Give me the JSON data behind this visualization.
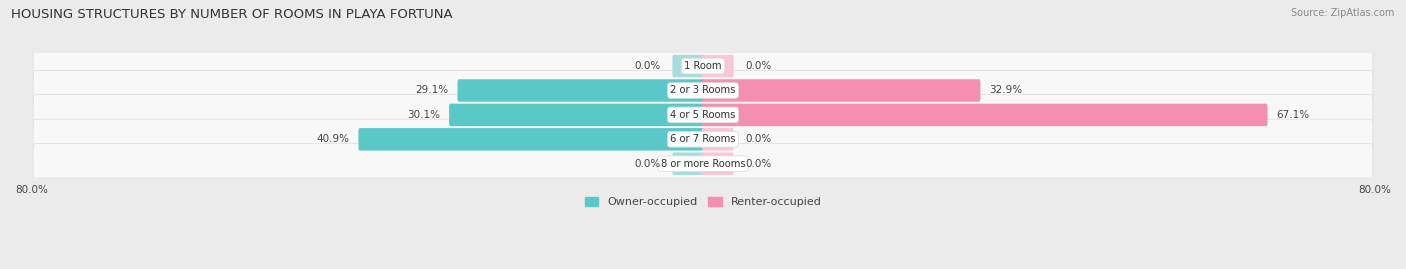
{
  "title": "HOUSING STRUCTURES BY NUMBER OF ROOMS IN PLAYA FORTUNA",
  "source": "Source: ZipAtlas.com",
  "categories": [
    "1 Room",
    "2 or 3 Rooms",
    "4 or 5 Rooms",
    "6 or 7 Rooms",
    "8 or more Rooms"
  ],
  "owner_values": [
    0.0,
    29.1,
    30.1,
    40.9,
    0.0
  ],
  "renter_values": [
    0.0,
    32.9,
    67.1,
    0.0,
    0.0
  ],
  "owner_color": "#5BC8C8",
  "renter_color": "#F48FB1",
  "owner_light_color": "#A8DCDC",
  "renter_light_color": "#F9C6D5",
  "row_bg_color": "#F2F2F2",
  "outer_bg_color": "#E8E8E8",
  "fig_bg_color": "#EBEBEB",
  "axis_min": -80.0,
  "axis_max": 80.0,
  "label_owner": "Owner-occupied",
  "label_renter": "Renter-occupied",
  "title_fontsize": 9.5,
  "source_fontsize": 7.0,
  "legend_fontsize": 8.0,
  "category_fontsize": 7.2,
  "value_fontsize": 7.5
}
